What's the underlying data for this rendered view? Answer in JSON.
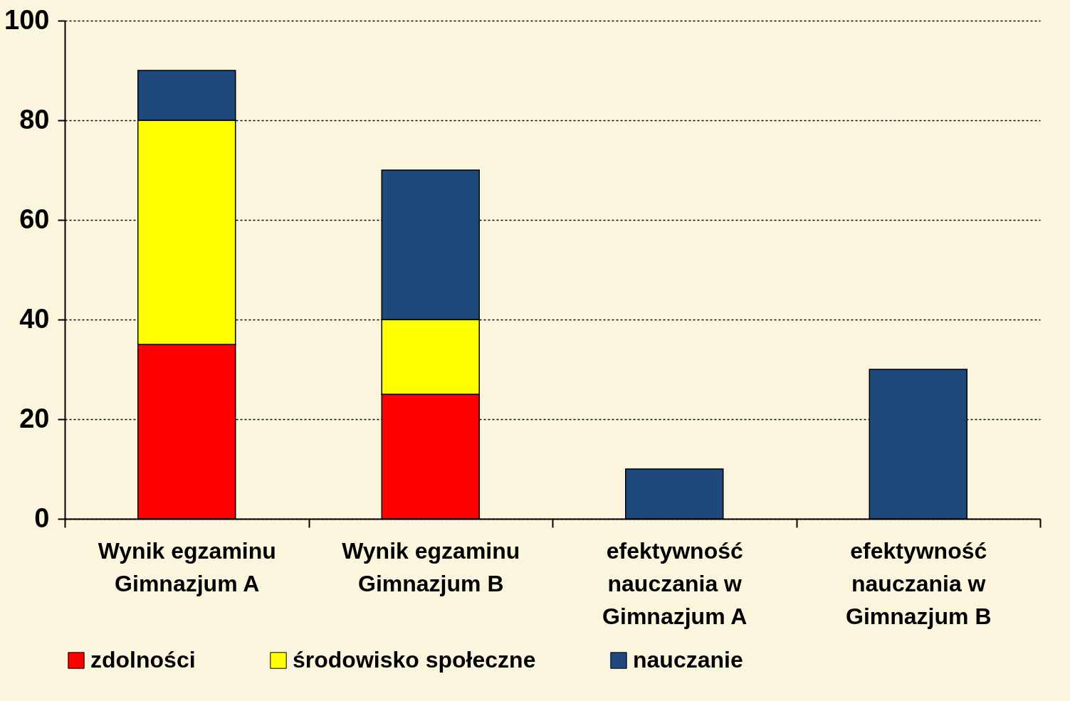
{
  "chart_data": {
    "type": "bar",
    "stacked": true,
    "categories": [
      "Wynik egzaminu Gimnazjum A",
      "Wynik egzaminu Gimnazjum B",
      "efektywność nauczania w Gimnazjum A",
      "efektywność nauczania w Gimnazjum B"
    ],
    "series": [
      {
        "name": "zdolności",
        "color": "#ff0000",
        "values": [
          35,
          25,
          null,
          null
        ]
      },
      {
        "name": "środowisko społeczne",
        "color": "#ffff00",
        "values": [
          45,
          15,
          null,
          null
        ]
      },
      {
        "name": "nauczanie",
        "color": "#1f497d",
        "values": [
          10,
          30,
          10,
          30
        ]
      }
    ],
    "ylim": [
      0,
      100
    ],
    "yticks": [
      0,
      20,
      40,
      60,
      80,
      100
    ],
    "grid": "y",
    "legend": "bottom"
  }
}
